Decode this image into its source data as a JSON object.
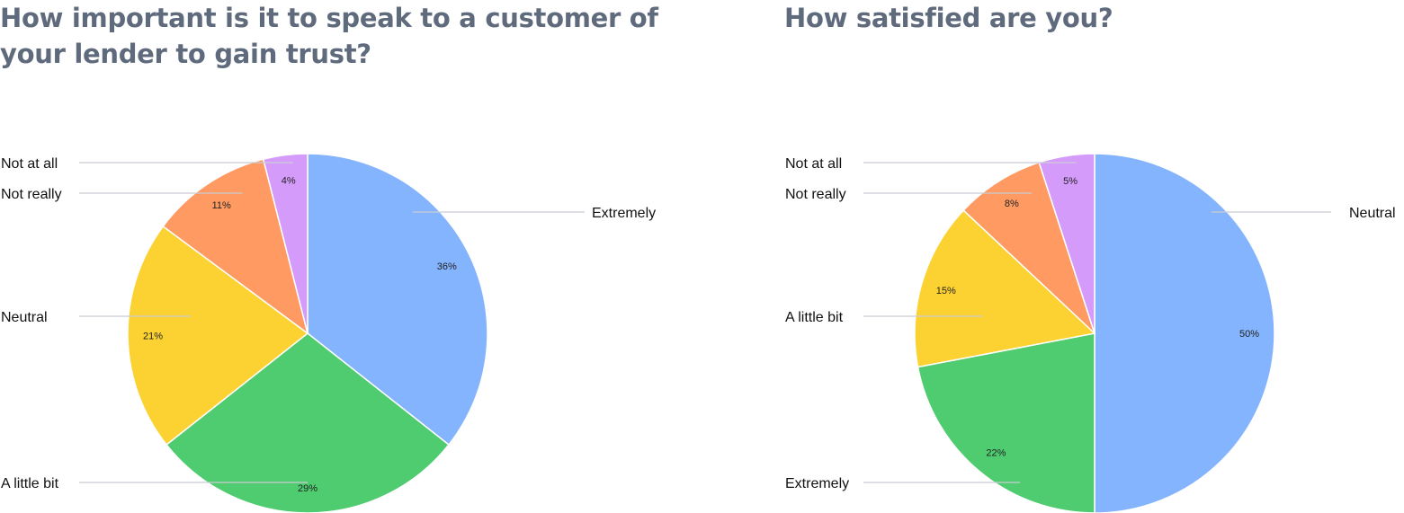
{
  "chart_data": [
    {
      "type": "pie",
      "title": "How important is it to speak to a customer of your lender to gain trust?",
      "slices": [
        {
          "label": "Extremely",
          "value": 36,
          "percent_label": "36%",
          "color": "#84b4fd"
        },
        {
          "label": "A little bit",
          "value": 29,
          "percent_label": "29%",
          "color": "#4fcb70"
        },
        {
          "label": "Neutral",
          "value": 21,
          "percent_label": "21%",
          "color": "#fcd232"
        },
        {
          "label": "Not really",
          "value": 11,
          "percent_label": "11%",
          "color": "#fe9a62"
        },
        {
          "label": "Not at all",
          "value": 4,
          "percent_label": "4%",
          "color": "#d59bfb"
        }
      ]
    },
    {
      "type": "pie",
      "title": "How satisfied are you?",
      "slices": [
        {
          "label": "Neutral",
          "value": 50,
          "percent_label": "50%",
          "color": "#84b4fd"
        },
        {
          "label": "Extremely",
          "value": 22,
          "percent_label": "22%",
          "color": "#4fcb70"
        },
        {
          "label": "A little bit",
          "value": 15,
          "percent_label": "15%",
          "color": "#fcd232"
        },
        {
          "label": "Not really",
          "value": 8,
          "percent_label": "8%",
          "color": "#fe9a62"
        },
        {
          "label": "Not at all",
          "value": 5,
          "percent_label": "5%",
          "color": "#d59bfb"
        }
      ]
    }
  ]
}
